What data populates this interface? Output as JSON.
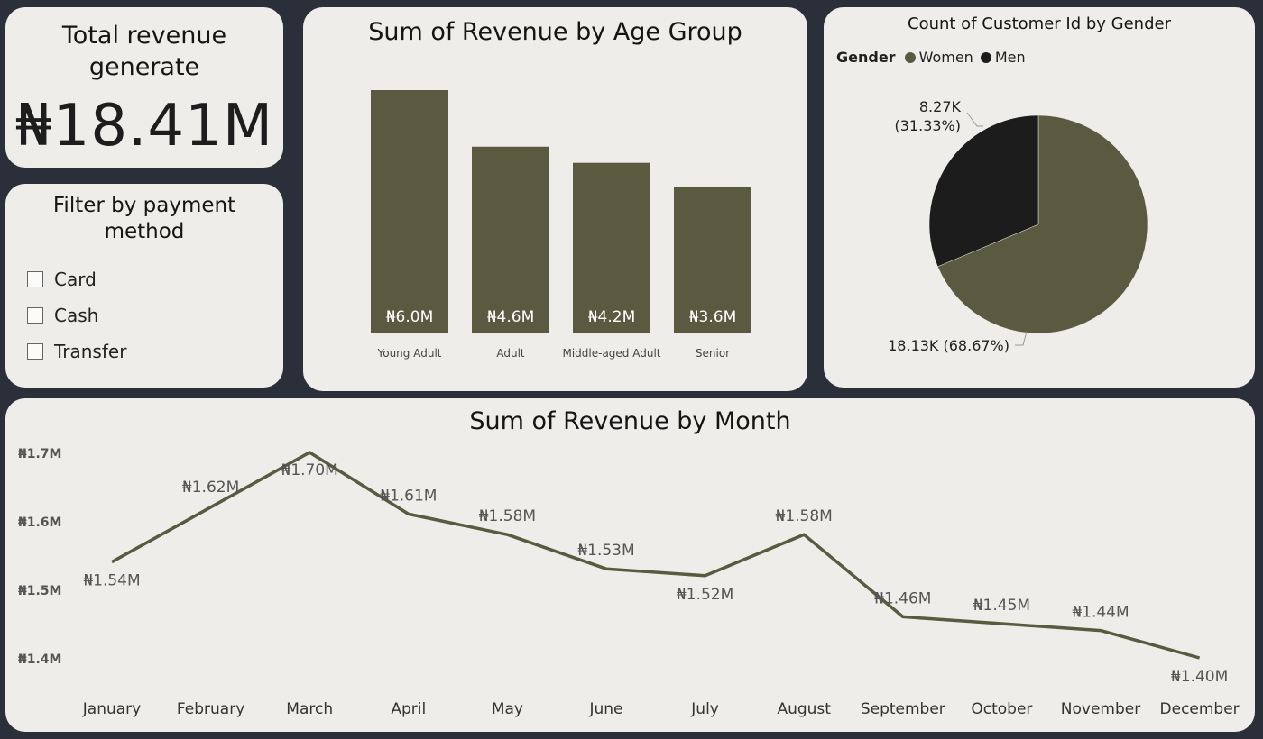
{
  "kpi": {
    "title": "Total revenue generate",
    "value": "₦18.41M"
  },
  "filter": {
    "title": "Filter by payment method",
    "options": [
      {
        "label": "Card",
        "checked": false
      },
      {
        "label": "Cash",
        "checked": false
      },
      {
        "label": "Transfer",
        "checked": false
      }
    ]
  },
  "colors": {
    "olive": "#5a5a40",
    "dark": "#1c1c1c",
    "card": "#eeedea",
    "background": "#2b2f3a"
  },
  "chart_data": [
    {
      "type": "bar",
      "title": "Sum of Revenue by Age Group",
      "categories": [
        "Young Adult",
        "Adult",
        "Middle-aged Adult",
        "Senior"
      ],
      "values": [
        6.0,
        4.6,
        4.2,
        3.6
      ],
      "data_labels": [
        "₦6.0M",
        "₦4.6M",
        "₦4.2M",
        "₦3.6M"
      ],
      "ylim": [
        0,
        6.0
      ],
      "grid": false
    },
    {
      "type": "pie",
      "title": "Count of Customer Id by Gender",
      "legend_title": "Gender",
      "legend_position": "top-left",
      "slices": [
        {
          "name": "Women",
          "value": 18130,
          "percent": 68.67,
          "label": "18.13K (68.67%)",
          "color": "#5a5a40"
        },
        {
          "name": "Men",
          "value": 8270,
          "percent": 31.33,
          "label_value": "8.27K",
          "label_percent": "(31.33%)",
          "color": "#1c1c1c"
        }
      ]
    },
    {
      "type": "line",
      "title": "Sum of Revenue by Month",
      "categories": [
        "January",
        "February",
        "March",
        "April",
        "May",
        "June",
        "July",
        "August",
        "September",
        "October",
        "November",
        "December"
      ],
      "values": [
        1.54,
        1.62,
        1.7,
        1.61,
        1.58,
        1.53,
        1.52,
        1.58,
        1.46,
        1.45,
        1.44,
        1.4
      ],
      "data_labels": [
        "₦1.54M",
        "₦1.62M",
        "₦1.70M",
        "₦1.61M",
        "₦1.58M",
        "₦1.53M",
        "₦1.52M",
        "₦1.58M",
        "₦1.46M",
        "₦1.45M",
        "₦1.44M",
        "₦1.40M"
      ],
      "y_ticks": [
        1.7,
        1.6,
        1.5,
        1.4
      ],
      "y_tick_labels": [
        "₦1.7M",
        "₦1.6M",
        "₦1.5M",
        "₦1.4M"
      ],
      "ylim": [
        1.4,
        1.7
      ],
      "grid": false
    }
  ]
}
